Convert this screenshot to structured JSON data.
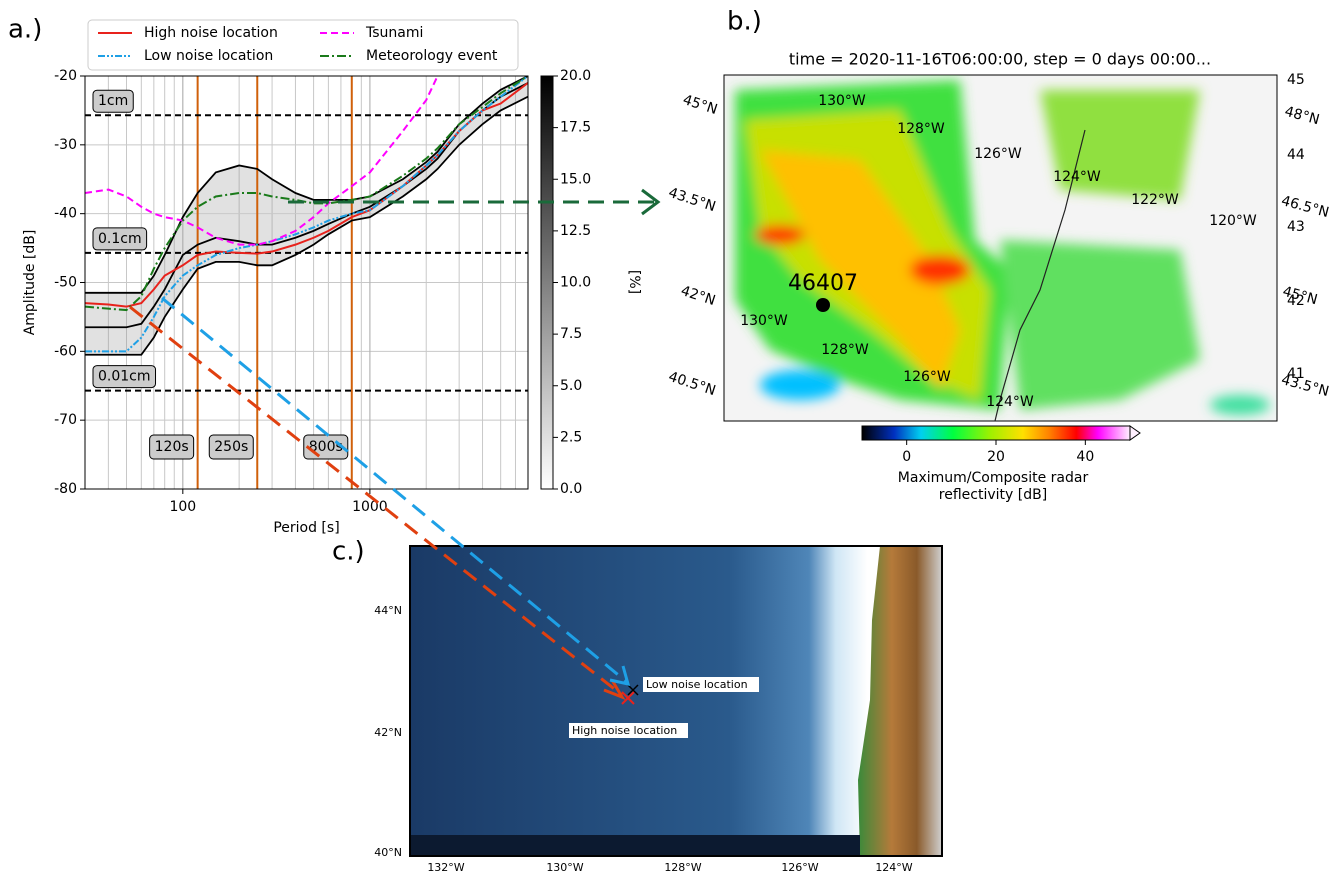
{
  "chart_data": {
    "type": "line",
    "panel_label": "a.)",
    "xlabel": "Period [s]",
    "ylabel": "Amplitude [dB]",
    "xlog": true,
    "grid": true,
    "legend": "top",
    "xlim": [
      30,
      7000
    ],
    "ylim": [
      -80,
      -20
    ],
    "xticks": [
      100,
      1000
    ],
    "yticks": [
      -80,
      -70,
      -60,
      -50,
      -40,
      -30,
      -20
    ],
    "x": [
      30,
      40,
      50,
      60,
      70,
      80,
      100,
      120,
      150,
      200,
      250,
      300,
      400,
      500,
      600,
      800,
      1000,
      1500,
      2000,
      2300,
      3000,
      4000,
      5000,
      7000
    ],
    "series": [
      {
        "color": "#000000",
        "linestyle": "solid",
        "values": [
          -51.5,
          -51.5,
          -51.5,
          -51.5,
          -49,
          -46,
          -40.5,
          -37,
          -34,
          -33,
          -33.5,
          -35,
          -37,
          -38,
          -38,
          -38,
          -37.5,
          -35,
          -32.5,
          -31,
          -27,
          -24,
          -22,
          -20
        ]
      },
      {
        "color": "#000000",
        "linestyle": "solid",
        "values": [
          -56.5,
          -56.5,
          -56.5,
          -56,
          -53.5,
          -51,
          -46,
          -44.5,
          -43.5,
          -44,
          -44.5,
          -44.5,
          -43.5,
          -42.5,
          -41.5,
          -40,
          -39,
          -36,
          -33.5,
          -32,
          -28,
          -25,
          -23,
          -21
        ]
      },
      {
        "color": "#000000",
        "linestyle": "solid",
        "values": [
          -60.5,
          -60.5,
          -60.5,
          -60.5,
          -58,
          -55,
          -51,
          -48,
          -47,
          -47,
          -47.5,
          -47.5,
          -46,
          -44.5,
          -43,
          -41,
          -40.5,
          -37.5,
          -35,
          -33.5,
          -30,
          -27,
          -25,
          -23
        ]
      },
      {
        "name": "High noise location",
        "color": "#e8221c",
        "linestyle": "solid",
        "values": [
          -53,
          -53.2,
          -53.5,
          -53,
          -51,
          -49,
          -47.5,
          -46,
          -45.5,
          -45.7,
          -45.8,
          -45.5,
          -44.5,
          -43.5,
          -42.5,
          -40.5,
          -39.5,
          -36,
          -33,
          -31.5,
          -28,
          -25,
          -24,
          -21
        ]
      },
      {
        "name": "Low noise location",
        "color": "#1ea0e6",
        "linestyle": "dashdotdot",
        "values": [
          -60,
          -60,
          -60,
          -58,
          -55,
          -52,
          -49,
          -47.5,
          -46,
          -45,
          -44.5,
          -44,
          -43,
          -42,
          -41,
          -40,
          -39.5,
          -36,
          -33,
          -31.5,
          -28,
          -25,
          -23,
          -20
        ]
      },
      {
        "name": "Tsunami",
        "color": "#ff00ff",
        "linestyle": "dashed",
        "values": [
          -37,
          -36.5,
          -37.5,
          -39,
          -40,
          -40.5,
          -41,
          -42,
          -43.5,
          -44.5,
          -44.5,
          -44,
          -42.5,
          -40.5,
          -38.5,
          -36,
          -34,
          -28,
          -23.5,
          -20,
          null,
          null,
          null,
          null
        ]
      },
      {
        "name": "Meteorology event",
        "color": "#1a7a1a",
        "linestyle": "dashdot",
        "values": [
          -53.5,
          -53.8,
          -54,
          -52,
          -48,
          -45,
          -41,
          -39,
          -37.5,
          -37,
          -37,
          -37.5,
          -38,
          -38.5,
          -38.5,
          -38,
          -37.5,
          -34.5,
          -32,
          -30.5,
          -27,
          -24.5,
          -22.5,
          -20
        ]
      }
    ],
    "hlines": [
      {
        "value": -25.7,
        "label": "1cm"
      },
      {
        "value": -45.7,
        "label": "0.1cm"
      },
      {
        "value": -65.7,
        "label": "0.01cm"
      }
    ],
    "vlines": [
      {
        "value": 120,
        "label": "120s"
      },
      {
        "value": 250,
        "label": "250s"
      },
      {
        "value": 800,
        "label": "800s"
      }
    ],
    "colorbar": {
      "label": "[%]",
      "lim": [
        0,
        20
      ],
      "ticks": [
        {
          "value": 0,
          "label": "0.0"
        },
        {
          "value": 2.5,
          "label": "2.5"
        },
        {
          "value": 5,
          "label": "5.0"
        },
        {
          "value": 7.5,
          "label": "7.5"
        },
        {
          "value": 10,
          "label": "10.0"
        },
        {
          "value": 12.5,
          "label": "12.5"
        },
        {
          "value": 15,
          "label": "15.0"
        },
        {
          "value": 17.5,
          "label": "17.5"
        },
        {
          "value": 20,
          "label": "20.0"
        }
      ]
    }
  },
  "map_b": {
    "panel_label": "b.)",
    "title": "time = 2020-11-16T06:00:00, step = 0 days 00:00...",
    "station": "46407",
    "grid_labels": [
      "130°W",
      "128°W",
      "126°W",
      "124°W",
      "122°W",
      "120°W",
      "130°W",
      "128°W",
      "126°W",
      "124°W",
      "45°N",
      "43.5°N",
      "42°N",
      "40.5°N",
      "45",
      "48°N",
      "44",
      "46.5°N",
      "43",
      "45°N",
      "42",
      "41",
      "43.5°N"
    ],
    "colorbar": {
      "label": [
        "Maximum/Composite radar",
        "reflectivity [dB]"
      ],
      "lim": [
        -10,
        50
      ],
      "ticks": [
        0,
        20,
        40
      ]
    }
  },
  "map_c": {
    "panel_label": "c.)",
    "low_label": "Low noise location",
    "high_label": "High noise location",
    "lon_labels": [
      "132°W",
      "130°W",
      "128°W",
      "126°W",
      "124°W"
    ],
    "lat_labels": [
      "44°N",
      "42°N",
      "40°N"
    ]
  }
}
